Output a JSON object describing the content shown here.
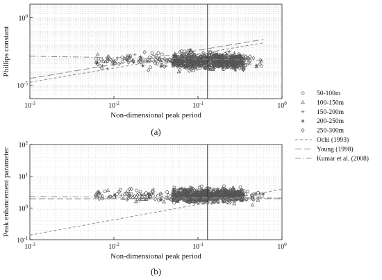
{
  "chart_data": [
    {
      "type": "scatter",
      "panel_label": "(a)",
      "xlabel": "Non-dimensional peak period",
      "ylabel": "Phillips constant",
      "x_scale": "log",
      "y_scale": "log",
      "xlim": [
        0.001,
        1
      ],
      "ylim": [
        1e-06,
        10
      ],
      "x_ticks": [
        {
          "v": 0.001,
          "b": "10",
          "e": "-3"
        },
        {
          "v": 0.01,
          "b": "10",
          "e": "-2"
        },
        {
          "v": 0.1,
          "b": "10",
          "e": "-1"
        },
        {
          "v": 1,
          "b": "10",
          "e": "0"
        }
      ],
      "y_ticks": [
        {
          "v": 1e-05,
          "b": "10",
          "e": "-5"
        },
        {
          "v": 1,
          "b": "10",
          "e": "0"
        }
      ],
      "grid": true,
      "vertical_line_x": 0.13,
      "lines": [
        {
          "name": "Ochi (1993)",
          "points": [
            [
              0.001,
              1.65e-05
            ],
            [
              0.6,
              0.0135
            ]
          ]
        },
        {
          "name": "Young (1998)",
          "points": [
            [
              0.001,
              3.16e-05
            ],
            [
              0.6,
              0.0245
            ]
          ]
        },
        {
          "name": "Kumar et al. (2008)",
          "points": [
            [
              0.001,
              0.00141
            ],
            [
              0.6,
              0.000708
            ]
          ]
        }
      ],
      "point_cloud": {
        "x_range": [
          0.006,
          0.6
        ],
        "dense_range": [
          0.05,
          0.35
        ],
        "y_center": 0.00063,
        "y_spread_decades": 0.55
      }
    },
    {
      "type": "scatter",
      "panel_label": "(b)",
      "xlabel": "Non-dimensional peak period",
      "ylabel": "Peak enhancement parameter",
      "x_scale": "log",
      "y_scale": "log",
      "xlim": [
        0.001,
        1
      ],
      "ylim": [
        0.1,
        100
      ],
      "x_ticks": [
        {
          "v": 0.001,
          "b": "10",
          "e": "-3"
        },
        {
          "v": 0.01,
          "b": "10",
          "e": "-2"
        },
        {
          "v": 0.1,
          "b": "10",
          "e": "-1"
        },
        {
          "v": 1,
          "b": "10",
          "e": "0"
        }
      ],
      "y_ticks": [
        {
          "v": 0.1,
          "b": "10",
          "e": "-1"
        },
        {
          "v": 1,
          "b": "10",
          "e": "0"
        },
        {
          "v": 10,
          "b": "10",
          "e": "1"
        },
        {
          "v": 100,
          "b": "10",
          "e": "2"
        }
      ],
      "grid": true,
      "vertical_line_x": 0.13,
      "lines": [
        {
          "name": "Ochi (1993)",
          "points": [
            [
              0.001,
              0.14
            ],
            [
              1,
              3.9
            ]
          ]
        },
        {
          "name": "Young (1998)",
          "points": [
            [
              0.001,
              1.95
            ],
            [
              1,
              1.95
            ]
          ]
        },
        {
          "name": "Kumar et al. (2008)",
          "points": [
            [
              0.001,
              2.3
            ],
            [
              1,
              2.05
            ]
          ]
        }
      ],
      "point_cloud": {
        "x_range": [
          0.006,
          0.6
        ],
        "dense_range": [
          0.05,
          0.35
        ],
        "y_center": 2.5,
        "y_spread_decades": 0.2
      }
    }
  ],
  "legend": {
    "placement": "right",
    "items": [
      {
        "label": "50-100m",
        "marker": "circle"
      },
      {
        "label": "100-150m",
        "marker": "triangle"
      },
      {
        "label": "150-200m",
        "marker": "plus"
      },
      {
        "label": "200-250m",
        "marker": "asterisk"
      },
      {
        "label": "250-300m",
        "marker": "diamond"
      },
      {
        "label": "Ochi (1993)",
        "line": "dash-short"
      },
      {
        "label": "Young (1998)",
        "line": "dash-long"
      },
      {
        "label": "Kumar et al. (2008)",
        "line": "dash-dot"
      }
    ]
  },
  "colors": {
    "marker": "#555555",
    "axis": "#222222",
    "grid": "#cfcfcf",
    "line": "#888888"
  }
}
